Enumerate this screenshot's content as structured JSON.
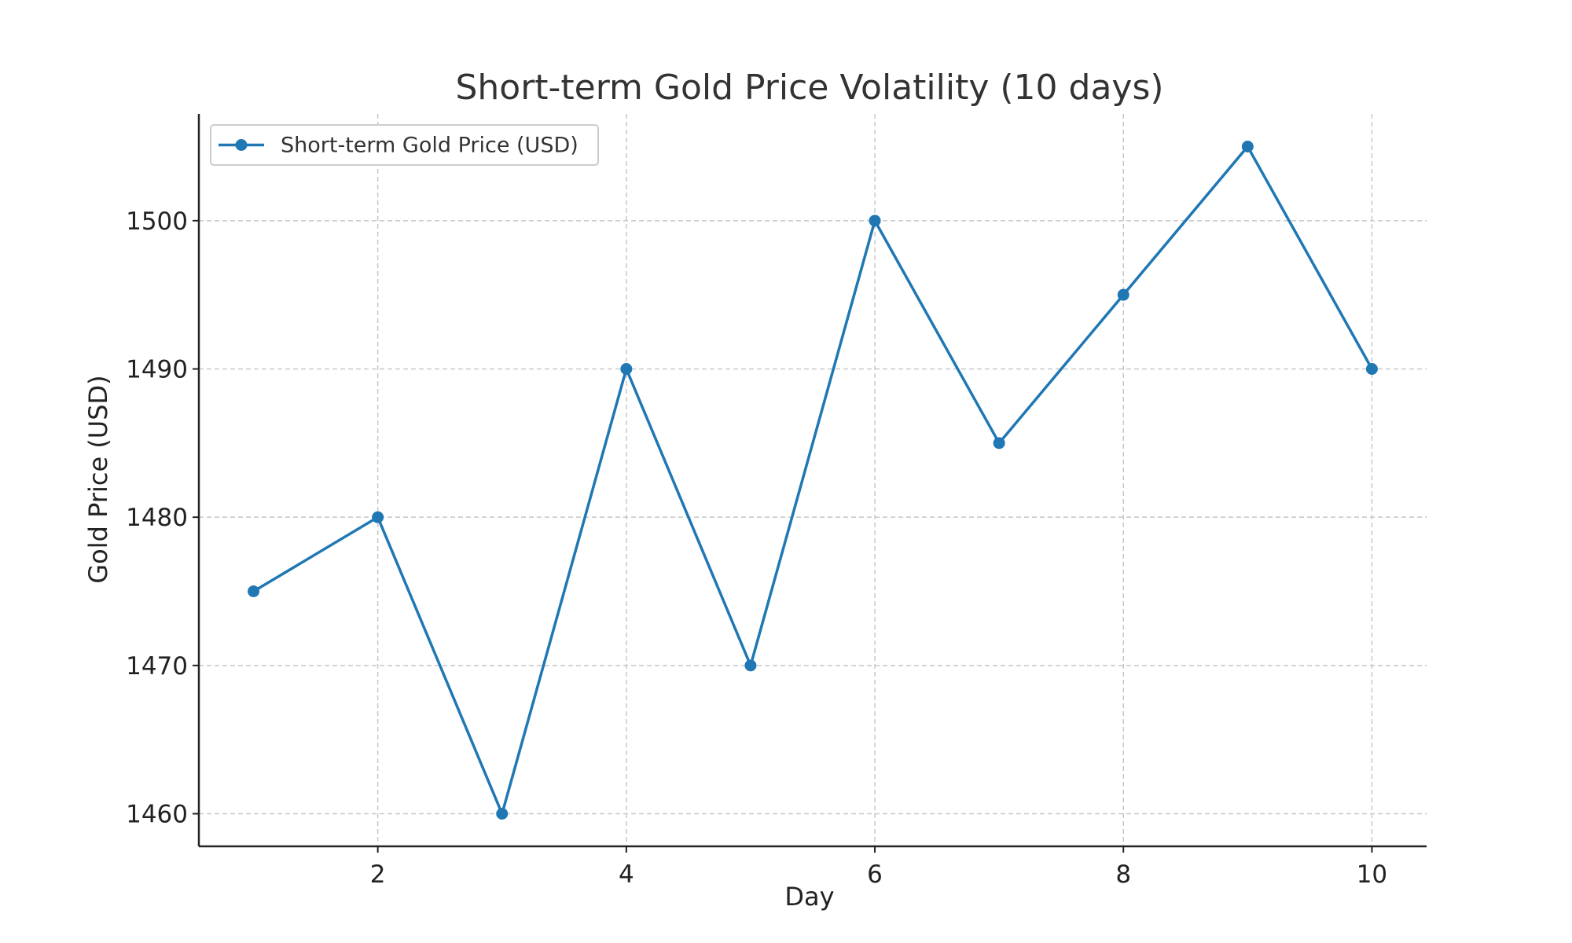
{
  "chart_data": {
    "type": "line",
    "title": "Short-term Gold Price Volatility (10 days)",
    "xlabel": "Day",
    "ylabel": "Gold Price (USD)",
    "xlim": [
      0.56,
      10.44
    ],
    "ylim": [
      1457.8,
      1507.2
    ],
    "xticks": [
      2,
      4,
      6,
      8,
      10
    ],
    "yticks": [
      1460,
      1470,
      1480,
      1490,
      1500
    ],
    "grid": true,
    "legend_position": "top-left",
    "series": [
      {
        "name": "Short-term Gold Price (USD)",
        "color": "#1f77b4",
        "marker": "circle",
        "x": [
          1,
          2,
          3,
          4,
          5,
          6,
          7,
          8,
          9,
          10
        ],
        "values": [
          1475,
          1480,
          1460,
          1490,
          1470,
          1500,
          1485,
          1495,
          1505,
          1490
        ]
      }
    ]
  }
}
